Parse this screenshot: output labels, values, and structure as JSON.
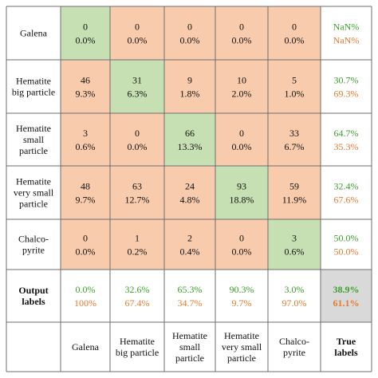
{
  "chart_data": {
    "type": "table",
    "row_labels": [
      [
        "Galena"
      ],
      [
        "Hematite",
        "big particle"
      ],
      [
        "Hematite",
        "small",
        "particle"
      ],
      [
        "Hematite",
        "very small",
        "particle"
      ],
      [
        "Chalco-",
        "pyrite"
      ]
    ],
    "col_labels": [
      [
        "Galena"
      ],
      [
        "Hematite",
        "big particle"
      ],
      [
        "Hematite",
        "small",
        "particle"
      ],
      [
        "Hematite",
        "very small",
        "particle"
      ],
      [
        "Chalco-",
        "pyrite"
      ]
    ],
    "row_summary_title": [
      "Output",
      "labels"
    ],
    "col_summary_title": [
      "True",
      "labels"
    ],
    "counts": [
      [
        0,
        0,
        0,
        0,
        0
      ],
      [
        46,
        31,
        9,
        10,
        5
      ],
      [
        3,
        0,
        66,
        0,
        33
      ],
      [
        48,
        63,
        24,
        93,
        59
      ],
      [
        0,
        1,
        2,
        0,
        3
      ]
    ],
    "percents": [
      [
        "0.0%",
        "0.0%",
        "0.0%",
        "0.0%",
        "0.0%"
      ],
      [
        "9.3%",
        "6.3%",
        "1.8%",
        "2.0%",
        "1.0%"
      ],
      [
        "0.6%",
        "0.0%",
        "13.3%",
        "0.0%",
        "6.7%"
      ],
      [
        "9.7%",
        "12.7%",
        "4.8%",
        "18.8%",
        "11.9%"
      ],
      [
        "0.0%",
        "0.2%",
        "0.4%",
        "0.0%",
        "0.6%"
      ]
    ],
    "row_summary": [
      [
        "NaN%",
        "NaN%"
      ],
      [
        "30.7%",
        "69.3%"
      ],
      [
        "64.7%",
        "35.3%"
      ],
      [
        "32.4%",
        "67.6%"
      ],
      [
        "50.0%",
        "50.0%"
      ]
    ],
    "col_summary": [
      [
        "0.0%",
        "100%"
      ],
      [
        "32.6%",
        "67.4%"
      ],
      [
        "65.3%",
        "34.7%"
      ],
      [
        "90.3%",
        "9.7%"
      ],
      [
        "3.0%",
        "97.0%"
      ]
    ],
    "overall": [
      "38.9%",
      "61.1%"
    ],
    "colors": {
      "correct_fill": "#c6e0b4",
      "incorrect_fill": "#f8cbad",
      "overall_fill": "#d9d9d9",
      "correct_text": "#3aa02a",
      "incorrect_text": "#e67a2e",
      "border": "#6e6e6e"
    }
  }
}
